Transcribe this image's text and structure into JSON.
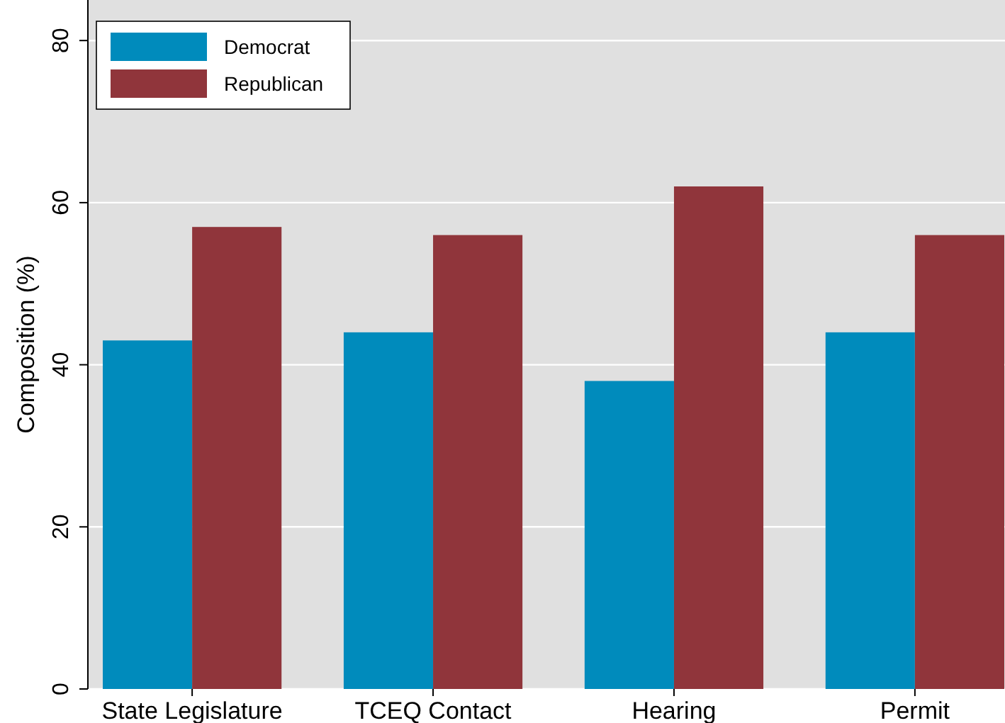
{
  "chart_data": {
    "type": "bar",
    "ylabel": "Composition (%)",
    "categories": [
      "State Legislature",
      "TCEQ Contact",
      "Hearing",
      "Permit"
    ],
    "series": [
      {
        "name": "Democrat",
        "color": "#008bbc",
        "values": [
          43,
          44,
          38,
          44
        ]
      },
      {
        "name": "Republican",
        "color": "#90353b",
        "values": [
          57,
          56,
          62,
          56
        ]
      }
    ],
    "ylim": [
      0,
      85
    ],
    "yticks": [
      0,
      20,
      40,
      60,
      80
    ],
    "grid": "y",
    "legend": "top left"
  }
}
